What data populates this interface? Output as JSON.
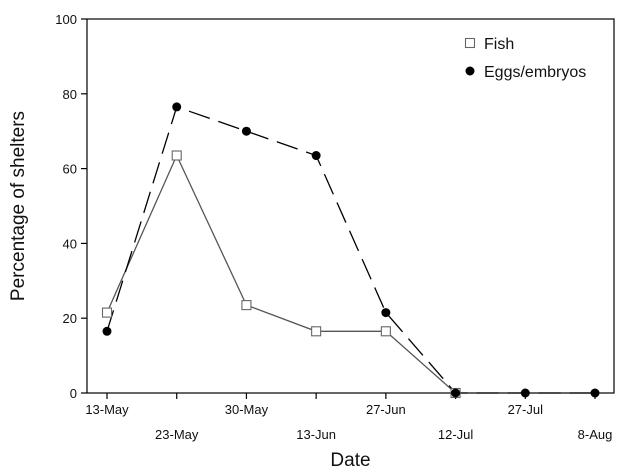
{
  "chart_data": {
    "type": "line",
    "title": "",
    "xlabel": "Date",
    "ylabel": "Percentage of shelters",
    "ylim": [
      0,
      100
    ],
    "yticks": [
      0,
      20,
      40,
      60,
      80,
      100
    ],
    "categories": [
      "13-May",
      "23-May",
      "30-May",
      "13-Jun",
      "27-Jun",
      "12-Jul",
      "27-Jul",
      "8-Aug"
    ],
    "category_label_rows": [
      "top",
      "bottom",
      "top",
      "bottom",
      "top",
      "bottom",
      "top",
      "bottom"
    ],
    "grid": false,
    "legend_position": "top-right",
    "series": [
      {
        "name": "Fish",
        "marker": "open-square",
        "line_style": "solid",
        "color": "#555555",
        "values": [
          21.5,
          63.5,
          23.5,
          16.5,
          16.5,
          0,
          null,
          null
        ]
      },
      {
        "name": "Eggs/embryos",
        "marker": "filled-circle",
        "line_style": "dashed",
        "color": "#000000",
        "values": [
          16.5,
          76.5,
          70,
          63.5,
          21.5,
          0,
          0,
          0
        ]
      }
    ]
  }
}
